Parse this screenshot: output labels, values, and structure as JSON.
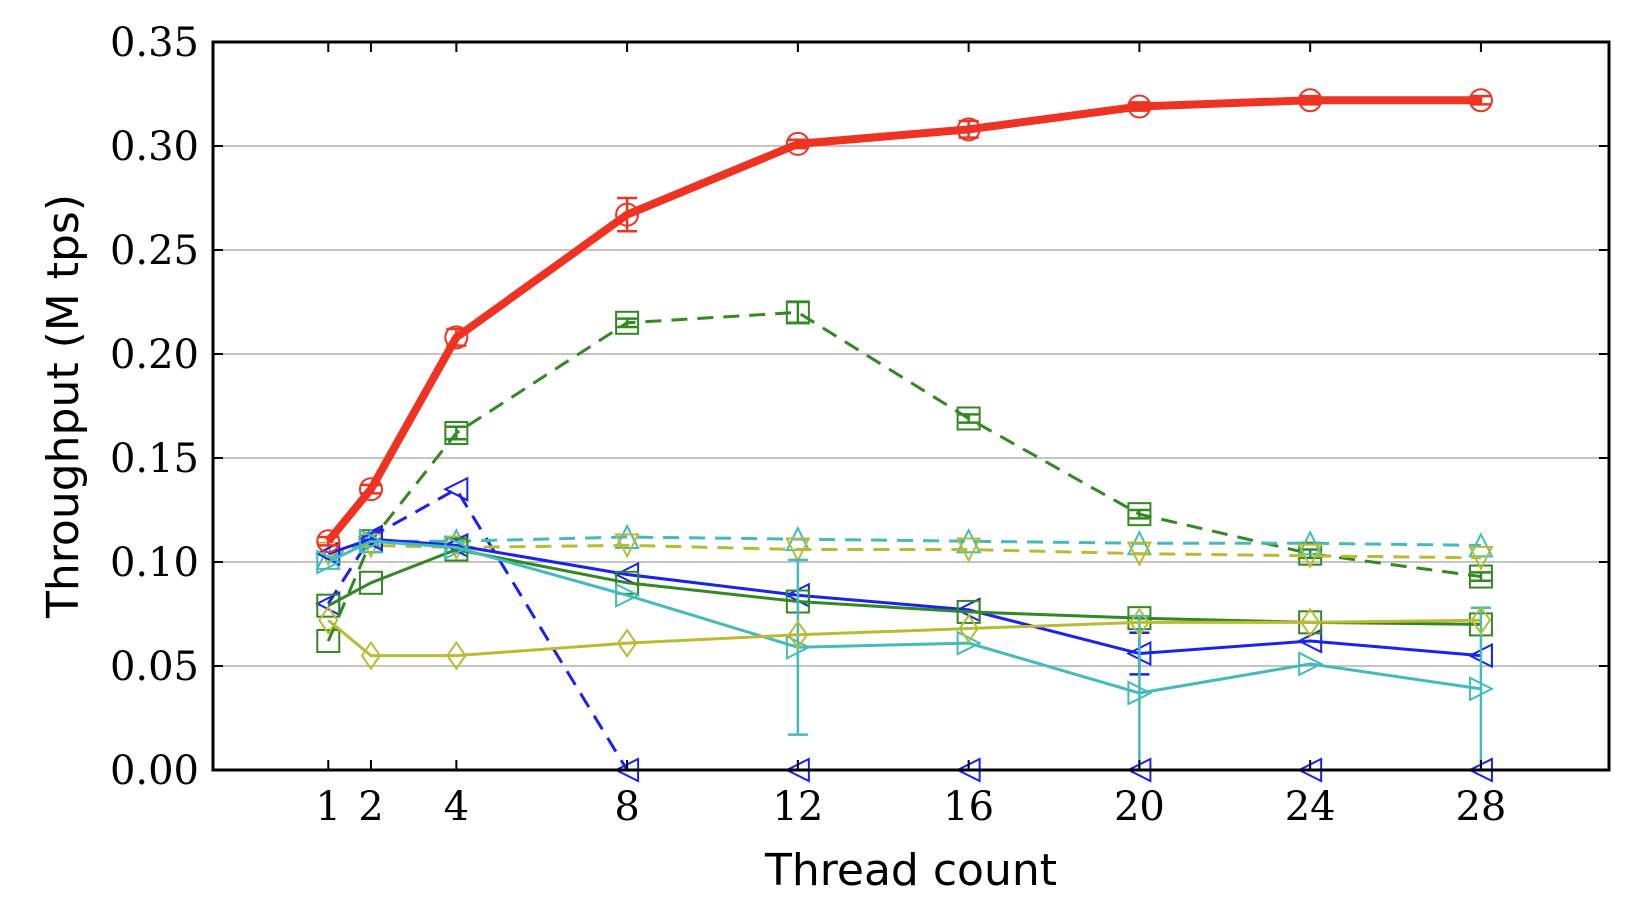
{
  "chart_data": {
    "type": "line",
    "title": "",
    "xlabel": "Thread count",
    "ylabel": "Throughput (M tps)",
    "xlim": [
      -1.7,
      31
    ],
    "ylim": [
      0,
      0.35
    ],
    "xticks": [
      1,
      2,
      4,
      8,
      12,
      16,
      20,
      24,
      28
    ],
    "xtick_labels": [
      "1",
      "2",
      "4",
      "8",
      "12",
      "16",
      "20",
      "24",
      "28"
    ],
    "yticks": [
      0,
      0.05,
      0.1,
      0.15,
      0.2,
      0.25,
      0.3,
      0.35
    ],
    "ytick_labels": [
      "0.00",
      "0.05",
      "0.10",
      "0.15",
      "0.20",
      "0.25",
      "0.30",
      "0.35"
    ],
    "grid": "horizontal",
    "legend": "none",
    "x": [
      1,
      2,
      4,
      8,
      12,
      16,
      20,
      24,
      28
    ],
    "series": [
      {
        "color": "#ee3322",
        "dash": "solid",
        "width": 8,
        "marker": "circle",
        "values": [
          0.11,
          0.135,
          0.208,
          0.267,
          0.301,
          0.308,
          0.319,
          0.322,
          0.322
        ],
        "err": [
          0.002,
          0.002,
          0.004,
          0.008,
          0.002,
          0.004,
          0.002,
          0.002,
          0.002
        ]
      },
      {
        "color": "#338822",
        "dash": "dashed",
        "width": 3,
        "marker": "square",
        "values": [
          0.062,
          0.11,
          0.162,
          0.215,
          0.22,
          0.169,
          0.123,
          0.104,
          0.093
        ],
        "err": [
          0,
          0,
          0.003,
          0.002,
          0.005,
          0.002,
          0.002,
          0.002,
          0.002
        ]
      },
      {
        "color": "#1a22ee",
        "dash": "dashed",
        "width": 3,
        "marker": "triangle-left",
        "values": [
          0.08,
          0.112,
          0.135,
          0,
          0,
          0,
          0,
          0,
          0
        ],
        "err": [
          0,
          0,
          0,
          0,
          0,
          0,
          0,
          0,
          0
        ]
      },
      {
        "color": "#44bbbb",
        "dash": "dashed",
        "width": 3,
        "marker": "triangle-up",
        "values": [
          0.102,
          0.11,
          0.11,
          0.112,
          0.111,
          0.11,
          0.109,
          0.109,
          0.108
        ],
        "err": [
          0,
          0,
          0,
          0,
          0,
          0,
          0,
          0,
          0
        ]
      },
      {
        "color": "#bbbb33",
        "dash": "dashed",
        "width": 3,
        "marker": "triangle-down",
        "values": [
          0.104,
          0.108,
          0.107,
          0.108,
          0.106,
          0.106,
          0.104,
          0.103,
          0.102
        ],
        "err": [
          0,
          0,
          0,
          0,
          0,
          0,
          0,
          0,
          0
        ]
      },
      {
        "color": "#1a22ee",
        "dash": "solid",
        "width": 3,
        "marker": "triangle-left",
        "values": [
          0.104,
          0.111,
          0.108,
          0.094,
          0.084,
          0.077,
          0.056,
          0.062,
          0.055
        ],
        "err": [
          0,
          0,
          0,
          0,
          0,
          0,
          0.01,
          0,
          0
        ]
      },
      {
        "color": "#338822",
        "dash": "solid",
        "width": 3,
        "marker": "square",
        "values": [
          0.079,
          0.09,
          0.106,
          0.09,
          0.081,
          0.076,
          0.073,
          0.071,
          0.07
        ],
        "err": [
          0,
          0,
          0,
          0,
          0,
          0,
          0,
          0,
          0
        ]
      },
      {
        "color": "#44bbbb",
        "dash": "solid",
        "width": 3,
        "marker": "triangle-right",
        "values": [
          0.1,
          0.11,
          0.107,
          0.084,
          0.059,
          0.061,
          0.037,
          0.051,
          0.039
        ],
        "err": [
          0,
          0,
          0,
          0,
          0.042,
          0,
          0.037,
          0,
          0.039
        ]
      },
      {
        "color": "#bbbb33",
        "dash": "solid",
        "width": 3,
        "marker": "diamond",
        "values": [
          0.072,
          0.055,
          0.055,
          0.061,
          0.065,
          0.068,
          0.071,
          0.071,
          0.072
        ],
        "err": [
          0,
          0,
          0,
          0,
          0,
          0,
          0,
          0,
          0
        ]
      }
    ]
  }
}
